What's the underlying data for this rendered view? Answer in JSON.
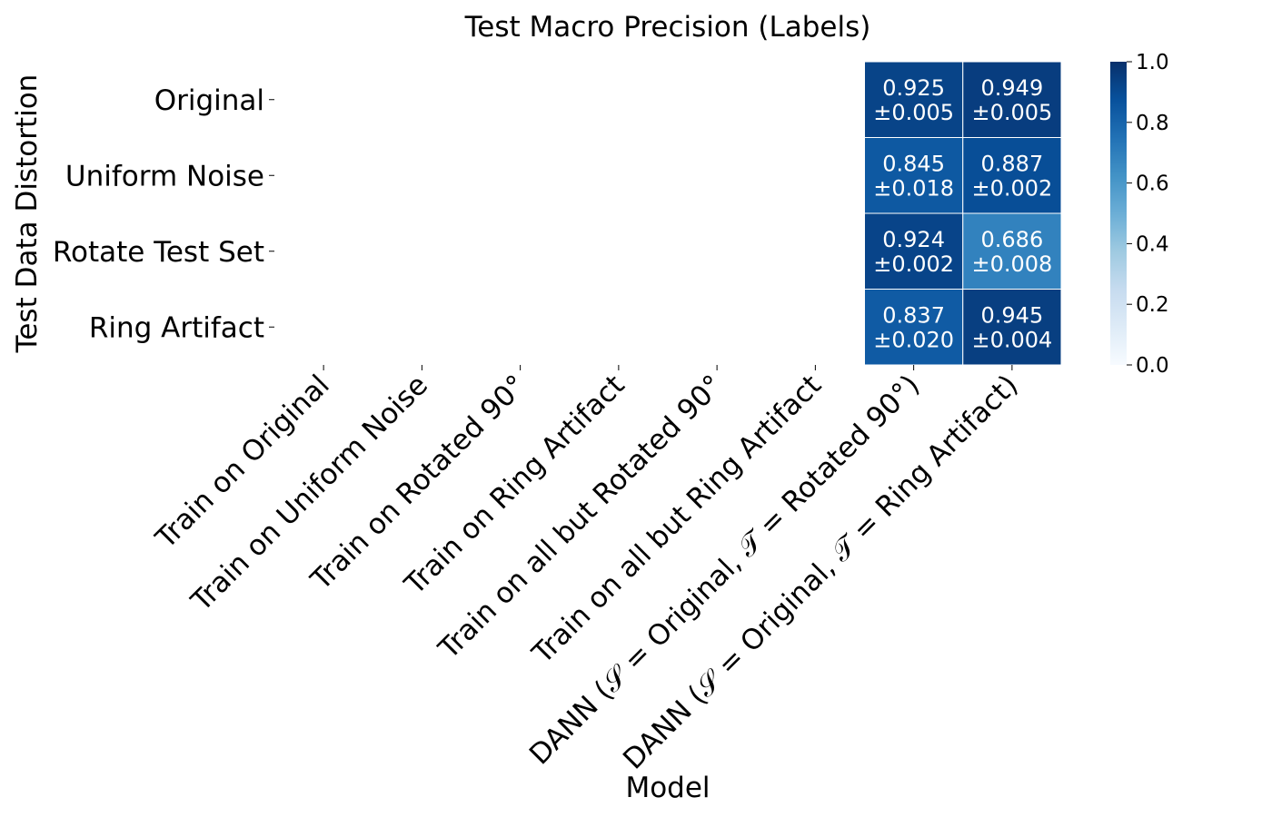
{
  "chart_data": {
    "type": "heatmap",
    "title": "Test Macro Precision (Labels)",
    "xlabel": "Model",
    "ylabel": "Test Data Distortion",
    "rows": [
      "Original",
      "Uniform Noise",
      "Rotate Test Set",
      "Ring Artifact"
    ],
    "columns": [
      "Train on Original",
      "Train on Uniform Noise",
      "Train on Rotated 90°",
      "Train on Ring Artifact",
      "Train on all but Rotated 90°",
      "Train on all but Ring Artifact",
      "DANN (𝒮 = Original, 𝒯 = Rotated 90°)",
      "DANN (𝒮 = Original, 𝒯 = Ring Artifact)"
    ],
    "values": [
      [
        null,
        null,
        null,
        null,
        null,
        null,
        0.925,
        0.949
      ],
      [
        null,
        null,
        null,
        null,
        null,
        null,
        0.845,
        0.887
      ],
      [
        null,
        null,
        null,
        null,
        null,
        null,
        0.924,
        0.686
      ],
      [
        null,
        null,
        null,
        null,
        null,
        null,
        0.837,
        0.945
      ]
    ],
    "cell_labels": [
      [
        null,
        null,
        null,
        null,
        null,
        null,
        [
          "0.925",
          "±0.005"
        ],
        [
          "0.949",
          "±0.005"
        ]
      ],
      [
        null,
        null,
        null,
        null,
        null,
        null,
        [
          "0.845",
          "±0.018"
        ],
        [
          "0.887",
          "±0.002"
        ]
      ],
      [
        null,
        null,
        null,
        null,
        null,
        null,
        [
          "0.924",
          "±0.002"
        ],
        [
          "0.686",
          "±0.008"
        ]
      ],
      [
        null,
        null,
        null,
        null,
        null,
        null,
        [
          "0.837",
          "±0.020"
        ],
        [
          "0.945",
          "±0.004"
        ]
      ]
    ],
    "colorbar": {
      "range": [
        0.0,
        1.0
      ],
      "ticks": [
        "0.0",
        "0.2",
        "0.4",
        "0.6",
        "0.8",
        "1.0"
      ],
      "colormap": "Blues",
      "low_color": "#f7fbff",
      "high_color": "#08306b"
    }
  }
}
